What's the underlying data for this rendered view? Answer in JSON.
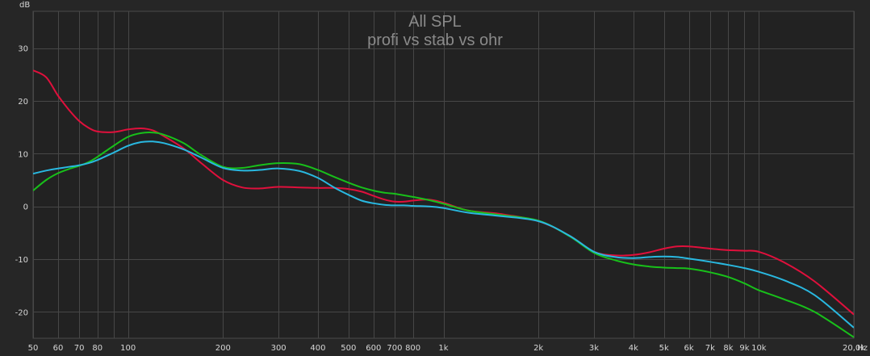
{
  "chart_data": {
    "type": "line",
    "title": "All SPL",
    "subtitle": "profi vs stab vs ohr",
    "ylabel": "dB",
    "xunit": "Hz",
    "xscale": "log",
    "xlim": [
      50,
      20000
    ],
    "ylim": [
      -25,
      37
    ],
    "grid": true,
    "x_ticks": [
      {
        "value": 50,
        "label": "50"
      },
      {
        "value": 60,
        "label": "60"
      },
      {
        "value": 70,
        "label": "70"
      },
      {
        "value": 80,
        "label": "80"
      },
      {
        "value": 100,
        "label": "100"
      },
      {
        "value": 200,
        "label": "200"
      },
      {
        "value": 300,
        "label": "300"
      },
      {
        "value": 400,
        "label": "400"
      },
      {
        "value": 500,
        "label": "500"
      },
      {
        "value": 600,
        "label": "600"
      },
      {
        "value": 700,
        "label": "700"
      },
      {
        "value": 800,
        "label": "800"
      },
      {
        "value": 1000,
        "label": "1k"
      },
      {
        "value": 2000,
        "label": "2k"
      },
      {
        "value": 3000,
        "label": "3k"
      },
      {
        "value": 4000,
        "label": "4k"
      },
      {
        "value": 5000,
        "label": "5k"
      },
      {
        "value": 6000,
        "label": "6k"
      },
      {
        "value": 7000,
        "label": "7k"
      },
      {
        "value": 8000,
        "label": "8k"
      },
      {
        "value": 9000,
        "label": "9k"
      },
      {
        "value": 10000,
        "label": "10k"
      },
      {
        "value": 20000,
        "label": "20,0k"
      }
    ],
    "x_minor_grid": [
      90
    ],
    "y_ticks": [
      {
        "value": 30,
        "label": "30"
      },
      {
        "value": 20,
        "label": "20"
      },
      {
        "value": 10,
        "label": "10"
      },
      {
        "value": 0,
        "label": "0"
      },
      {
        "value": -10,
        "label": "-10"
      },
      {
        "value": -20,
        "label": "-20"
      }
    ],
    "series": [
      {
        "color": "#e0103c",
        "x": [
          50,
          55,
          60,
          65,
          70,
          75,
          80,
          90,
          100,
          110,
          120,
          130,
          150,
          170,
          200,
          230,
          260,
          300,
          350,
          400,
          450,
          500,
          550,
          600,
          650,
          700,
          750,
          800,
          900,
          1000,
          1200,
          1500,
          2000,
          2500,
          3000,
          3500,
          4000,
          4500,
          5000,
          5500,
          6000,
          7000,
          8000,
          9000,
          10000,
          12000,
          15000,
          20000
        ],
        "y": [
          25.8,
          24.5,
          21.0,
          18.3,
          16.2,
          14.9,
          14.2,
          14.1,
          14.6,
          14.8,
          14.4,
          13.3,
          11.0,
          8.3,
          5.0,
          3.6,
          3.4,
          3.7,
          3.6,
          3.5,
          3.5,
          3.3,
          2.8,
          2.0,
          1.3,
          0.9,
          0.9,
          1.1,
          1.3,
          0.7,
          -0.8,
          -1.4,
          -2.8,
          -5.5,
          -8.6,
          -9.3,
          -9.2,
          -8.7,
          -8.0,
          -7.6,
          -7.6,
          -8.0,
          -8.3,
          -8.4,
          -8.6,
          -10.6,
          -14.2,
          -20.5
        ]
      },
      {
        "color": "#18c01a",
        "x": [
          50,
          55,
          60,
          65,
          70,
          75,
          80,
          90,
          100,
          110,
          120,
          130,
          150,
          170,
          200,
          230,
          260,
          300,
          350,
          400,
          450,
          500,
          550,
          600,
          650,
          700,
          750,
          800,
          900,
          1000,
          1200,
          1500,
          2000,
          2500,
          3000,
          3500,
          4000,
          4500,
          5000,
          5500,
          6000,
          7000,
          8000,
          9000,
          10000,
          12000,
          15000,
          20000
        ],
        "y": [
          3.0,
          5.0,
          6.3,
          7.1,
          7.7,
          8.4,
          9.4,
          11.5,
          13.2,
          13.9,
          14.0,
          13.6,
          12.0,
          9.8,
          7.5,
          7.3,
          7.8,
          8.2,
          8.0,
          6.9,
          5.6,
          4.5,
          3.6,
          3.0,
          2.6,
          2.4,
          2.1,
          1.8,
          1.2,
          0.5,
          -0.8,
          -1.6,
          -2.7,
          -5.6,
          -8.8,
          -10.2,
          -11.0,
          -11.4,
          -11.6,
          -11.7,
          -11.8,
          -12.5,
          -13.4,
          -14.6,
          -15.9,
          -17.6,
          -20.0,
          -24.8
        ]
      },
      {
        "color": "#29b8e0",
        "x": [
          50,
          55,
          60,
          65,
          70,
          75,
          80,
          90,
          100,
          110,
          120,
          130,
          150,
          170,
          200,
          230,
          260,
          300,
          350,
          400,
          450,
          500,
          550,
          600,
          650,
          700,
          750,
          800,
          900,
          1000,
          1200,
          1500,
          2000,
          2500,
          3000,
          3500,
          4000,
          4500,
          5000,
          5500,
          6000,
          7000,
          8000,
          9000,
          10000,
          12000,
          15000,
          20000
        ],
        "y": [
          6.2,
          6.8,
          7.2,
          7.5,
          7.8,
          8.2,
          8.8,
          10.2,
          11.5,
          12.2,
          12.3,
          12.0,
          10.8,
          9.3,
          7.3,
          6.8,
          6.9,
          7.2,
          6.7,
          5.4,
          3.6,
          2.2,
          1.1,
          0.6,
          0.3,
          0.2,
          0.2,
          0.1,
          0.0,
          -0.3,
          -1.2,
          -1.8,
          -2.8,
          -5.5,
          -8.6,
          -9.6,
          -9.8,
          -9.6,
          -9.5,
          -9.6,
          -9.9,
          -10.5,
          -11.1,
          -11.7,
          -12.4,
          -14.0,
          -16.8,
          -23.0
        ]
      }
    ]
  }
}
